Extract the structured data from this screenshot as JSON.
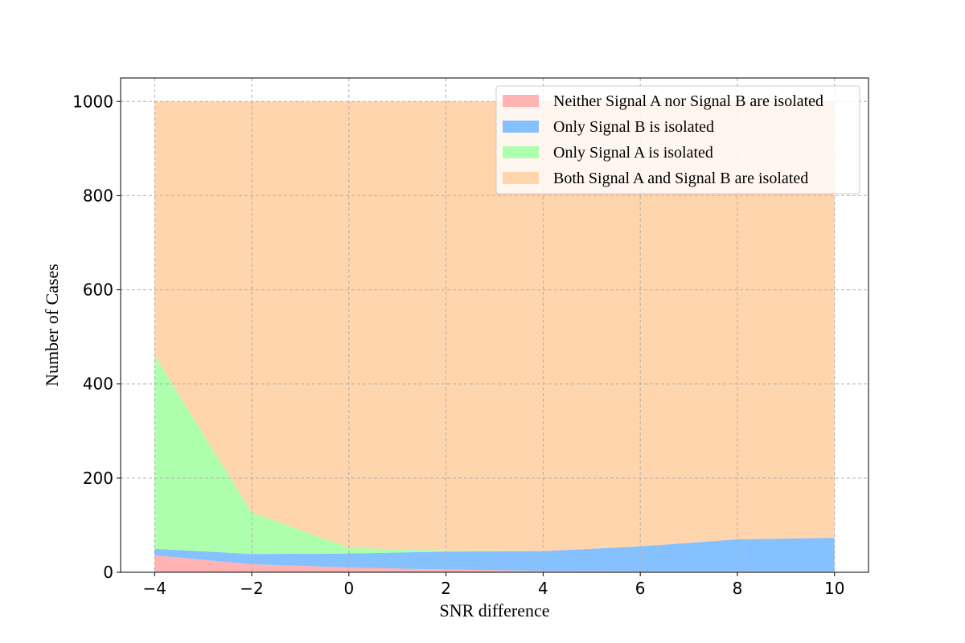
{
  "chart_data": {
    "type": "area",
    "stacked": true,
    "x": [
      -4,
      -2,
      0,
      2,
      4,
      6,
      8,
      10
    ],
    "xticks": [
      "−4",
      "−2",
      "0",
      "2",
      "4",
      "6",
      "8",
      "10"
    ],
    "yticks": [
      "0",
      "200",
      "400",
      "600",
      "800",
      "1000"
    ],
    "xlim": [
      -4.7,
      10.7
    ],
    "ylim": [
      0,
      1050
    ],
    "xlabel": "SNR difference",
    "ylabel": "Number of Cases",
    "grid": true,
    "legend_position": "top-right",
    "series": [
      {
        "name": "Neither Signal A nor Signal B are isolated",
        "color": "#ffb3b3",
        "values": [
          36,
          17,
          10,
          6,
          3,
          2,
          2,
          2
        ]
      },
      {
        "name": "Only Signal B is isolated",
        "color": "#85c1ff",
        "values": [
          14,
          22,
          30,
          38,
          42,
          53,
          68,
          71
        ]
      },
      {
        "name": "Only Signal A is isolated",
        "color": "#adffad",
        "values": [
          410,
          88,
          12,
          2,
          0,
          0,
          0,
          0
        ]
      },
      {
        "name": "Both Signal A and Signal B are isolated",
        "color": "#ffd5ad",
        "values": [
          540,
          873,
          948,
          954,
          955,
          945,
          930,
          927
        ]
      }
    ]
  }
}
